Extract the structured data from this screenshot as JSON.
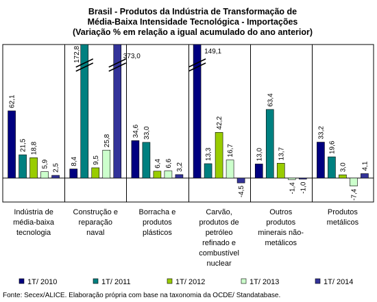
{
  "chart_data": {
    "type": "bar",
    "title_lines": [
      "Brasil - Produtos da Indústria de Transformação de",
      "Média-Baixa Intensidade Tecnológica - Importações",
      "(Variação % em relação a igual acumulado do ano anterior)"
    ],
    "categories": [
      [
        "Indústria de",
        "média-baixa",
        "tecnologia"
      ],
      [
        "Construção e",
        "reparação",
        "naval"
      ],
      [
        "Borracha e",
        "produtos",
        "plásticos"
      ],
      [
        "Carvão,",
        "produtos de",
        "petróleo",
        "refinado e",
        "combustível",
        "nuclear"
      ],
      [
        "Outros",
        "produtos",
        "minerais não-",
        "metálicos"
      ],
      [
        "Produtos",
        "metálicos"
      ]
    ],
    "series": [
      {
        "name": "1T/ 2010",
        "color": "#000080",
        "values": [
          62.1,
          8.4,
          34.6,
          149.1,
          13.0,
          33.2
        ],
        "labels": [
          "62,1",
          "8,4",
          "34,6",
          "149,1",
          "13,0",
          "33,2"
        ]
      },
      {
        "name": "1T/ 2011",
        "color": "#008080",
        "values": [
          21.5,
          172.8,
          33.0,
          13.3,
          63.4,
          19.6
        ],
        "labels": [
          "21,5",
          "172,8",
          "33,0",
          "13,3",
          "63,4",
          "19,6"
        ]
      },
      {
        "name": "1T/ 2012",
        "color": "#99cc00",
        "values": [
          18.8,
          9.5,
          6.4,
          42.2,
          13.7,
          3.0
        ],
        "labels": [
          "18,8",
          "9,5",
          "6,4",
          "42,2",
          "13,7",
          "3,0"
        ]
      },
      {
        "name": "1T/ 2013",
        "color": "#ccffcc",
        "values": [
          5.9,
          25.8,
          6.6,
          16.7,
          -1.4,
          -7.4
        ],
        "labels": [
          "5,9",
          "25,8",
          "6,6",
          "16,7",
          "-1,4",
          "-7,4"
        ]
      },
      {
        "name": "1T/ 2014",
        "color": "#333399",
        "values": [
          2.5,
          373.0,
          3.2,
          -4.5,
          -1.0,
          4.1
        ],
        "labels": [
          "2,5",
          "373,0",
          "3,2",
          "-4,5",
          "-1,0",
          "4,1"
        ]
      }
    ],
    "broken_axis_bars": [
      "172,8",
      "373,0",
      "149,1"
    ],
    "grid": false,
    "legend_position": "bottom",
    "source": "Fonte: Secex/ALICE. Elaboração própria com base na taxonomia da OCDE/ Standatabase."
  }
}
